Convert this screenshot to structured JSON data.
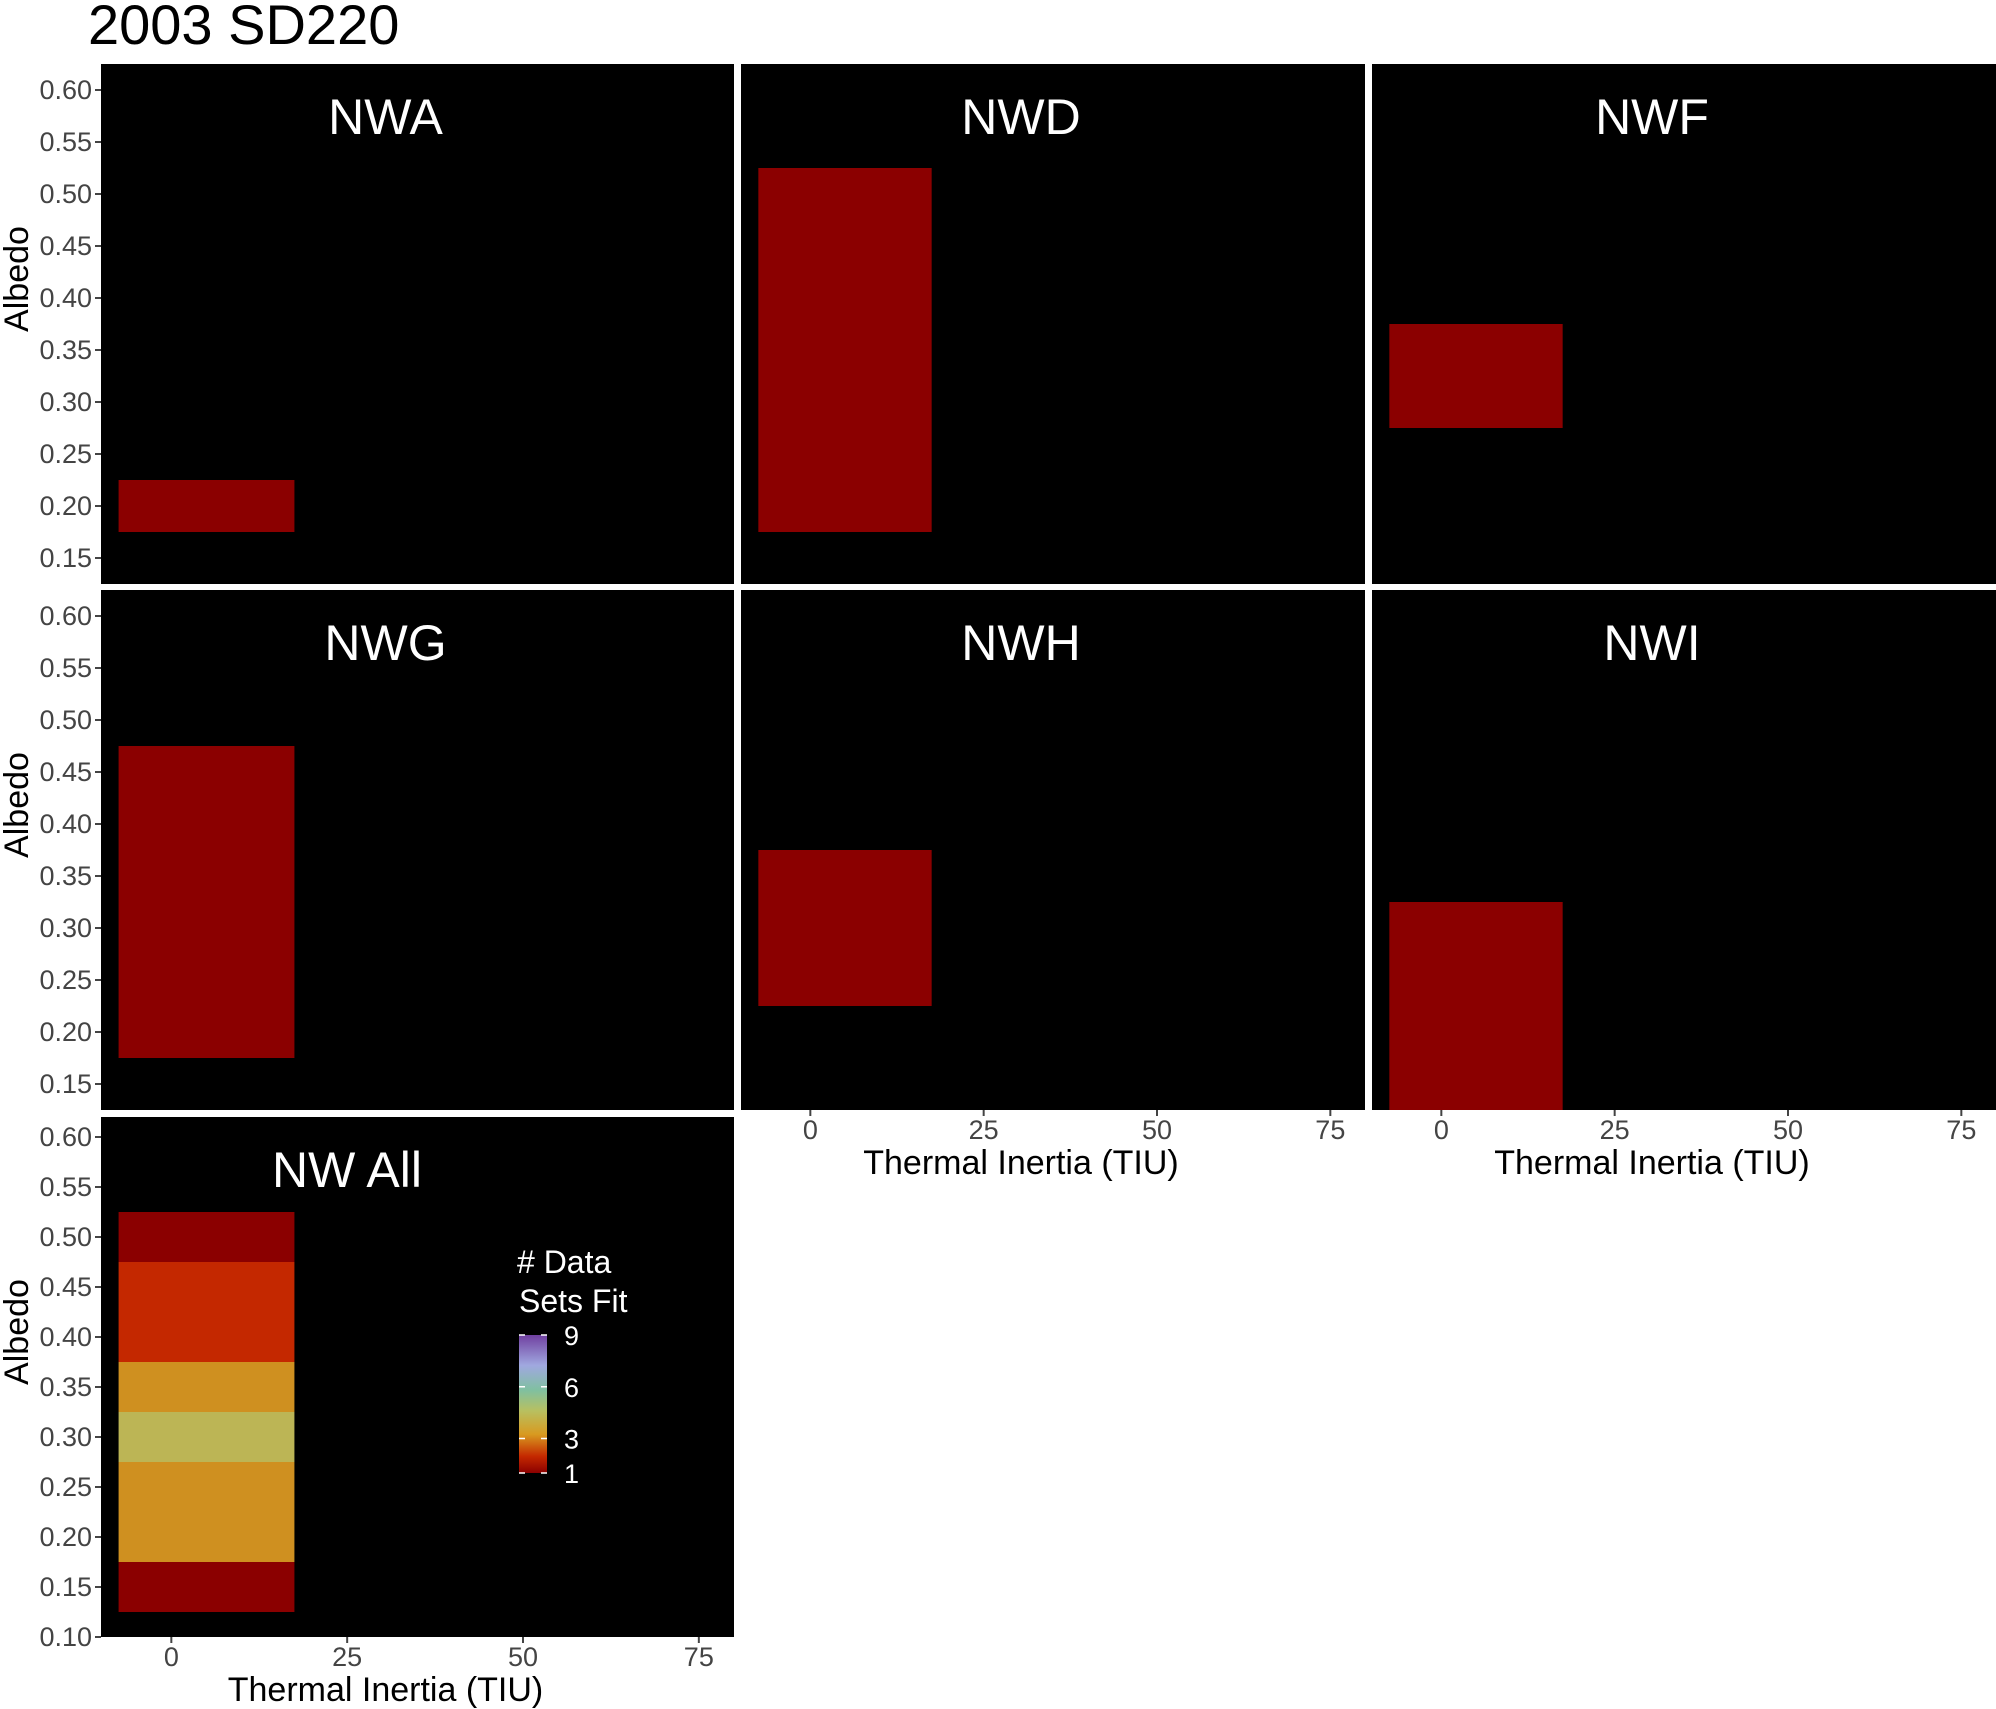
{
  "title": "2003 SD220",
  "chart_data": {
    "type": "heatmap",
    "title": "2003 SD220",
    "xlabel": "Thermal Inertia (TIU)",
    "ylabel": "Albedo",
    "xlim": [
      -10,
      80
    ],
    "x_ticks": [
      "0",
      "25",
      "50",
      "75"
    ],
    "cell_x_range": [
      -7.5,
      17.5
    ],
    "panels": [
      {
        "name": "NWA",
        "ylim": [
          0.125,
          0.625
        ],
        "y_ticks": [
          "0.15",
          "0.20",
          "0.25",
          "0.30",
          "0.35",
          "0.40",
          "0.45",
          "0.50",
          "0.55",
          "0.60"
        ],
        "cells": [
          {
            "x": 5,
            "y0": 0.175,
            "y1": 0.225,
            "count": 1
          }
        ]
      },
      {
        "name": "NWD",
        "ylim": [
          0.125,
          0.625
        ],
        "cells": [
          {
            "x": 5,
            "y0": 0.175,
            "y1": 0.525,
            "count": 1
          }
        ]
      },
      {
        "name": "NWF",
        "ylim": [
          0.125,
          0.625
        ],
        "cells": [
          {
            "x": 5,
            "y0": 0.275,
            "y1": 0.375,
            "count": 1
          }
        ]
      },
      {
        "name": "NWG",
        "ylim": [
          0.125,
          0.625
        ],
        "y_ticks": [
          "0.15",
          "0.20",
          "0.25",
          "0.30",
          "0.35",
          "0.40",
          "0.45",
          "0.50",
          "0.55",
          "0.60"
        ],
        "cells": [
          {
            "x": 5,
            "y0": 0.175,
            "y1": 0.475,
            "count": 1
          }
        ]
      },
      {
        "name": "NWH",
        "ylim": [
          0.125,
          0.625
        ],
        "cells": [
          {
            "x": 5,
            "y0": 0.225,
            "y1": 0.375,
            "count": 1
          }
        ]
      },
      {
        "name": "NWI",
        "ylim": [
          0.125,
          0.625
        ],
        "cells": [
          {
            "x": 5,
            "y0": 0.125,
            "y1": 0.325,
            "count": 1
          }
        ]
      },
      {
        "name": "NW All",
        "ylim": [
          0.1,
          0.62
        ],
        "y_ticks": [
          "0.10",
          "0.15",
          "0.20",
          "0.25",
          "0.30",
          "0.35",
          "0.40",
          "0.45",
          "0.50",
          "0.55",
          "0.60"
        ],
        "cells": [
          {
            "x": 5,
            "y0": 0.475,
            "y1": 0.525,
            "count": 1
          },
          {
            "x": 5,
            "y0": 0.375,
            "y1": 0.475,
            "count": 2
          },
          {
            "x": 5,
            "y0": 0.325,
            "y1": 0.375,
            "count": 3
          },
          {
            "x": 5,
            "y0": 0.275,
            "y1": 0.325,
            "count": 4
          },
          {
            "x": 5,
            "y0": 0.175,
            "y1": 0.275,
            "count": 3
          },
          {
            "x": 5,
            "y0": 0.125,
            "y1": 0.175,
            "count": 1
          }
        ]
      }
    ],
    "legend": {
      "title_line1": "# Data",
      "title_line2": "Sets Fit",
      "ticks": [
        "9",
        "6",
        "3",
        "1"
      ],
      "range": [
        1,
        9
      ],
      "placement": "inside NW All panel, right"
    },
    "colors": {
      "panel_bg": "#000000",
      "count_colors": {
        "1": "#8b0000",
        "2": "#c42800",
        "3": "#cf9020",
        "4": "#bcb555"
      },
      "gradient": [
        "#8b0000",
        "#c42800",
        "#d89a20",
        "#b8c060",
        "#80c0a0",
        "#a0a8e0",
        "#7040a0"
      ]
    }
  }
}
